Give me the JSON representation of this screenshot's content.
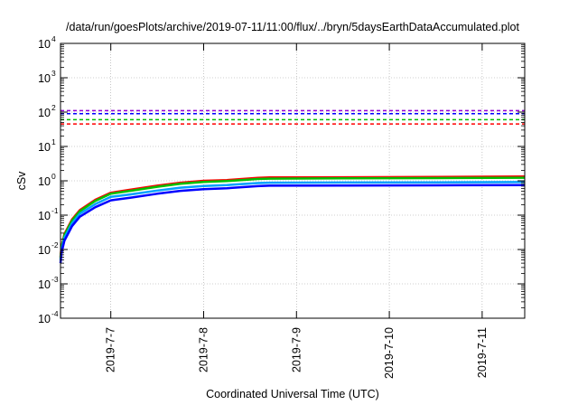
{
  "chart_data": {
    "type": "line",
    "title": "/data/run/goesPlots/archive/2019-07-11/11:00/flux/../bryn/5daysEarthDataAccumulated.plot",
    "xlabel": "Coordinated Universal Time (UTC)",
    "ylabel": "cSv",
    "y_scale": "log",
    "ylim": [
      0.0001,
      10000
    ],
    "y_ticks": [
      {
        "base": "10",
        "exp": "-4",
        "value": 0.0001
      },
      {
        "base": "10",
        "exp": "-3",
        "value": 0.001
      },
      {
        "base": "10",
        "exp": "-2",
        "value": 0.01
      },
      {
        "base": "10",
        "exp": "-1",
        "value": 0.1
      },
      {
        "base": "10",
        "exp": "0",
        "value": 1
      },
      {
        "base": "10",
        "exp": "1",
        "value": 10
      },
      {
        "base": "10",
        "exp": "2",
        "value": 100
      },
      {
        "base": "10",
        "exp": "3",
        "value": 1000
      },
      {
        "base": "10",
        "exp": "4",
        "value": 10000
      }
    ],
    "xlim": [
      "2019-07-06 11:00",
      "2019-07-11 11:00"
    ],
    "x_ticks": [
      "2019-7-7",
      "2019-7-8",
      "2019-7-9",
      "2019-7-10",
      "2019-7-11"
    ],
    "grid": true,
    "legend": "none",
    "thresholds": [
      {
        "value": 110,
        "color": "#9400d3",
        "style": "dashed"
      },
      {
        "value": 90,
        "color": "#0000ff",
        "style": "dashed"
      },
      {
        "value": 60,
        "color": "#00c000",
        "style": "dashed"
      },
      {
        "value": 45,
        "color": "#ff0000",
        "style": "dashed"
      }
    ],
    "series": [
      {
        "color": "#ff0000",
        "x": [
          "2019-07-06 11:00",
          "2019-07-06 11:15",
          "2019-07-06 12:00",
          "2019-07-06 14:00",
          "2019-07-06 16:00",
          "2019-07-06 20:00",
          "2019-07-07 00:00",
          "2019-07-07 05:00",
          "2019-07-07 12:00",
          "2019-07-07 18:00",
          "2019-07-08 00:00",
          "2019-07-08 06:00",
          "2019-07-08 14:00",
          "2019-07-08 17:00",
          "2019-07-09 12:00",
          "2019-07-10 12:00",
          "2019-07-11 11:00"
        ],
        "y": [
          0.006,
          0.012,
          0.028,
          0.075,
          0.14,
          0.28,
          0.45,
          0.55,
          0.72,
          0.88,
          1.0,
          1.05,
          1.22,
          1.25,
          1.27,
          1.3,
          1.33
        ]
      },
      {
        "color": "#00c000",
        "x": [
          "2019-07-06 11:00",
          "2019-07-06 11:15",
          "2019-07-06 12:00",
          "2019-07-06 14:00",
          "2019-07-06 16:00",
          "2019-07-06 20:00",
          "2019-07-07 00:00",
          "2019-07-07 05:00",
          "2019-07-07 12:00",
          "2019-07-07 18:00",
          "2019-07-08 00:00",
          "2019-07-08 06:00",
          "2019-07-08 14:00",
          "2019-07-08 17:00",
          "2019-07-09 12:00",
          "2019-07-10 12:00",
          "2019-07-11 11:00"
        ],
        "y": [
          0.0055,
          0.011,
          0.026,
          0.07,
          0.13,
          0.26,
          0.42,
          0.51,
          0.67,
          0.82,
          0.93,
          0.98,
          1.13,
          1.16,
          1.18,
          1.2,
          1.23
        ]
      },
      {
        "color": "#00a0ff",
        "x": [
          "2019-07-06 11:00",
          "2019-07-06 11:15",
          "2019-07-06 12:00",
          "2019-07-06 14:00",
          "2019-07-06 16:00",
          "2019-07-06 20:00",
          "2019-07-07 00:00",
          "2019-07-07 05:00",
          "2019-07-07 12:00",
          "2019-07-07 18:00",
          "2019-07-08 00:00",
          "2019-07-08 06:00",
          "2019-07-08 14:00",
          "2019-07-08 17:00",
          "2019-07-09 12:00",
          "2019-07-10 12:00",
          "2019-07-11 11:00"
        ],
        "y": [
          0.0048,
          0.0095,
          0.022,
          0.058,
          0.11,
          0.21,
          0.34,
          0.4,
          0.52,
          0.63,
          0.71,
          0.75,
          0.86,
          0.88,
          0.89,
          0.9,
          0.92
        ]
      },
      {
        "color": "#0000ff",
        "x": [
          "2019-07-06 11:00",
          "2019-07-06 11:15",
          "2019-07-06 12:00",
          "2019-07-06 14:00",
          "2019-07-06 16:00",
          "2019-07-06 20:00",
          "2019-07-07 00:00",
          "2019-07-07 05:00",
          "2019-07-07 12:00",
          "2019-07-07 18:00",
          "2019-07-08 00:00",
          "2019-07-08 06:00",
          "2019-07-08 14:00",
          "2019-07-08 17:00",
          "2019-07-09 12:00",
          "2019-07-10 12:00",
          "2019-07-11 11:00"
        ],
        "y": [
          0.004,
          0.008,
          0.018,
          0.048,
          0.09,
          0.17,
          0.27,
          0.32,
          0.42,
          0.51,
          0.57,
          0.61,
          0.7,
          0.72,
          0.73,
          0.74,
          0.75
        ]
      }
    ]
  }
}
